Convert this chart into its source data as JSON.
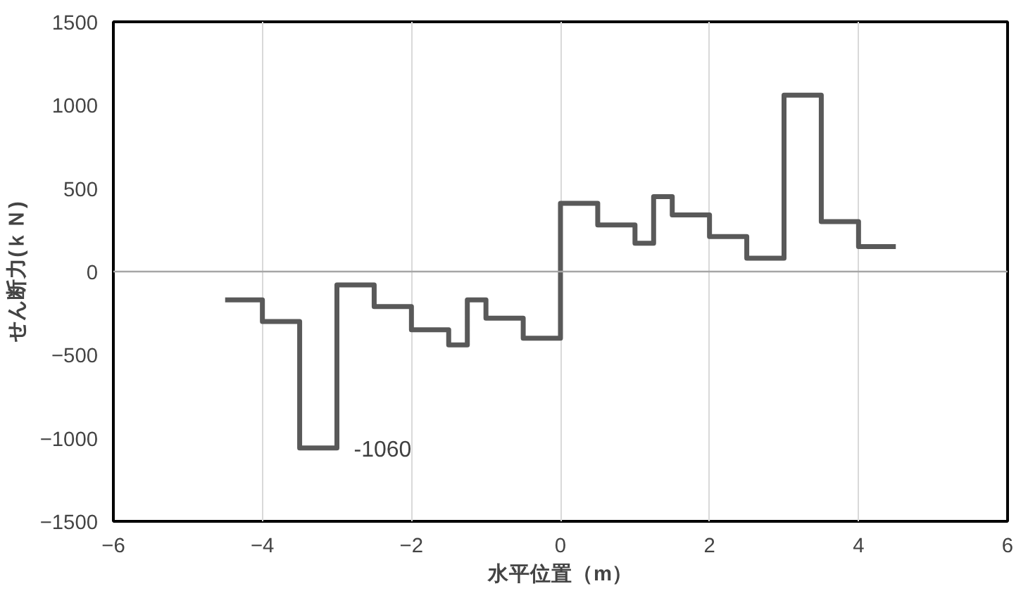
{
  "chart_data": {
    "type": "step",
    "xlabel": "水平位置（m）",
    "ylabel": "せん断力(ｋＮ)",
    "x": [
      -4.5,
      -4,
      -3.5,
      -3,
      -2.5,
      -2,
      -1.5,
      -1.25,
      -1,
      -0.5,
      0,
      0.5,
      1,
      1.25,
      1.5,
      2,
      2.5,
      3,
      3.5,
      4,
      4.5
    ],
    "series": [
      {
        "color": "#595959",
        "values": [
          -170,
          -300,
          -1060,
          -80,
          -210,
          -350,
          -440,
          -170,
          -280,
          -400,
          410,
          280,
          170,
          450,
          340,
          210,
          80,
          1060,
          300,
          150,
          150
        ]
      }
    ],
    "xlim": [
      -6,
      6
    ],
    "xticks": [
      -6,
      -4,
      -2,
      0,
      2,
      4,
      6
    ],
    "ylim": [
      -1500,
      1500
    ],
    "yticks": [
      -1500,
      -1000,
      -500,
      0,
      500,
      1000,
      1500
    ],
    "grid": "x",
    "line_style": "solid",
    "marker": "none",
    "ref_lines": [
      {
        "axis": "y",
        "value": 0,
        "label": null,
        "color": "#a6a6a6"
      }
    ],
    "annotations": [
      {
        "text": "-1060",
        "x": -3,
        "y": -1060
      }
    ]
  }
}
